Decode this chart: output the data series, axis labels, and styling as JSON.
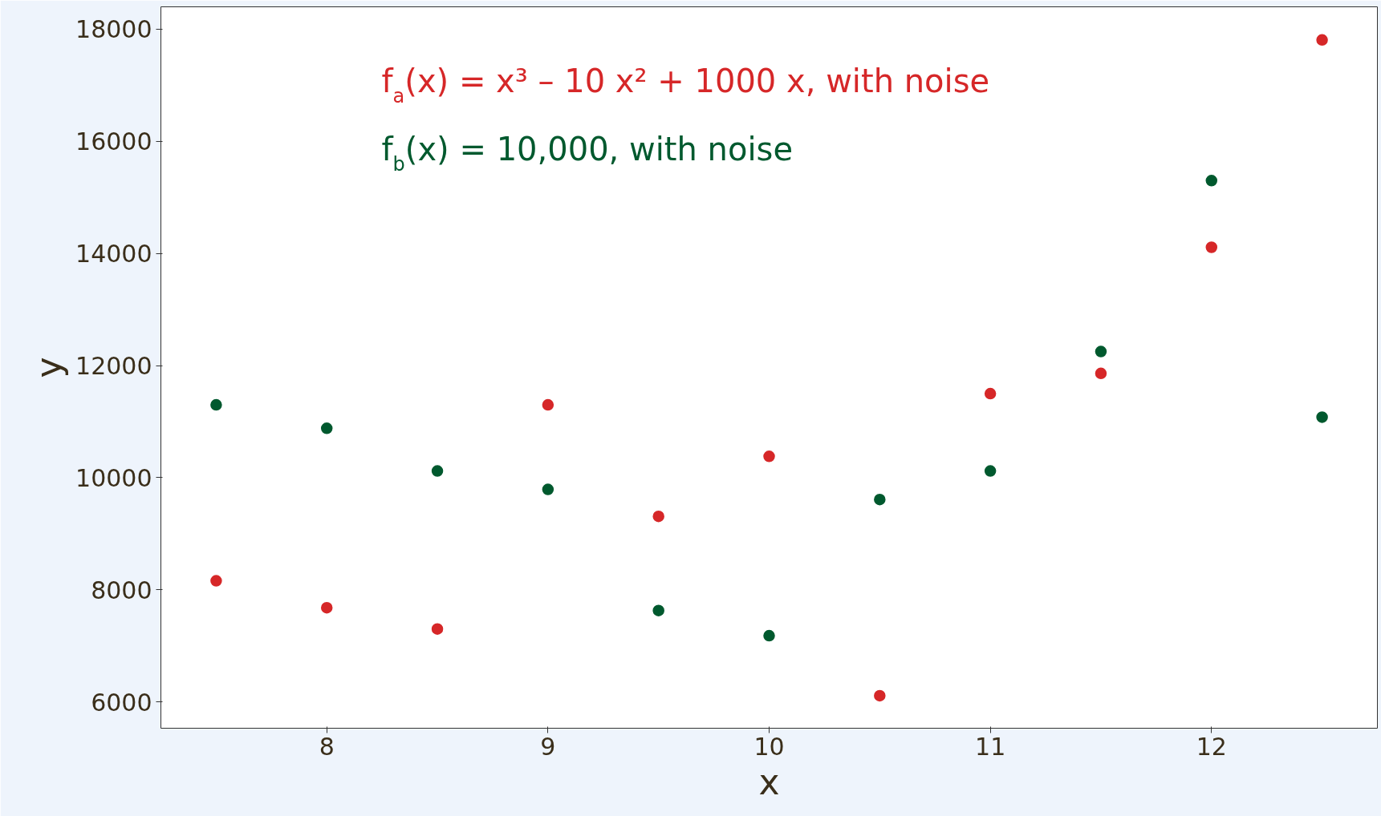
{
  "chart_data": {
    "type": "scatter",
    "xlabel": "x",
    "ylabel": "y",
    "x": [
      7.5,
      8,
      8.5,
      9,
      9.5,
      10,
      10.5,
      11,
      11.5,
      12,
      12.5
    ],
    "series": [
      {
        "color": "#d62728",
        "values": [
          8160,
          7680,
          7300,
          11300,
          9310,
          10380,
          6110,
          11500,
          11860,
          14110,
          17810
        ]
      },
      {
        "color": "#00592e",
        "values": [
          11300,
          10880,
          10120,
          9790,
          7630,
          7180,
          9610,
          10120,
          12250,
          15300,
          11080
        ]
      }
    ],
    "annotations": [
      "f$_{a}$(x)  =  x³ – 10 x² + 1000 x, with noise",
      "f$_{b}$(x)  =  10,000, with noise"
    ],
    "xlim": [
      7.25,
      12.75
    ],
    "ylim": [
      5530,
      18400
    ],
    "xticks": [
      8,
      9,
      10,
      11,
      12
    ],
    "yticks": [
      6000,
      8000,
      10000,
      12000,
      14000,
      16000,
      18000
    ],
    "marker": "circle",
    "grid": false
  }
}
